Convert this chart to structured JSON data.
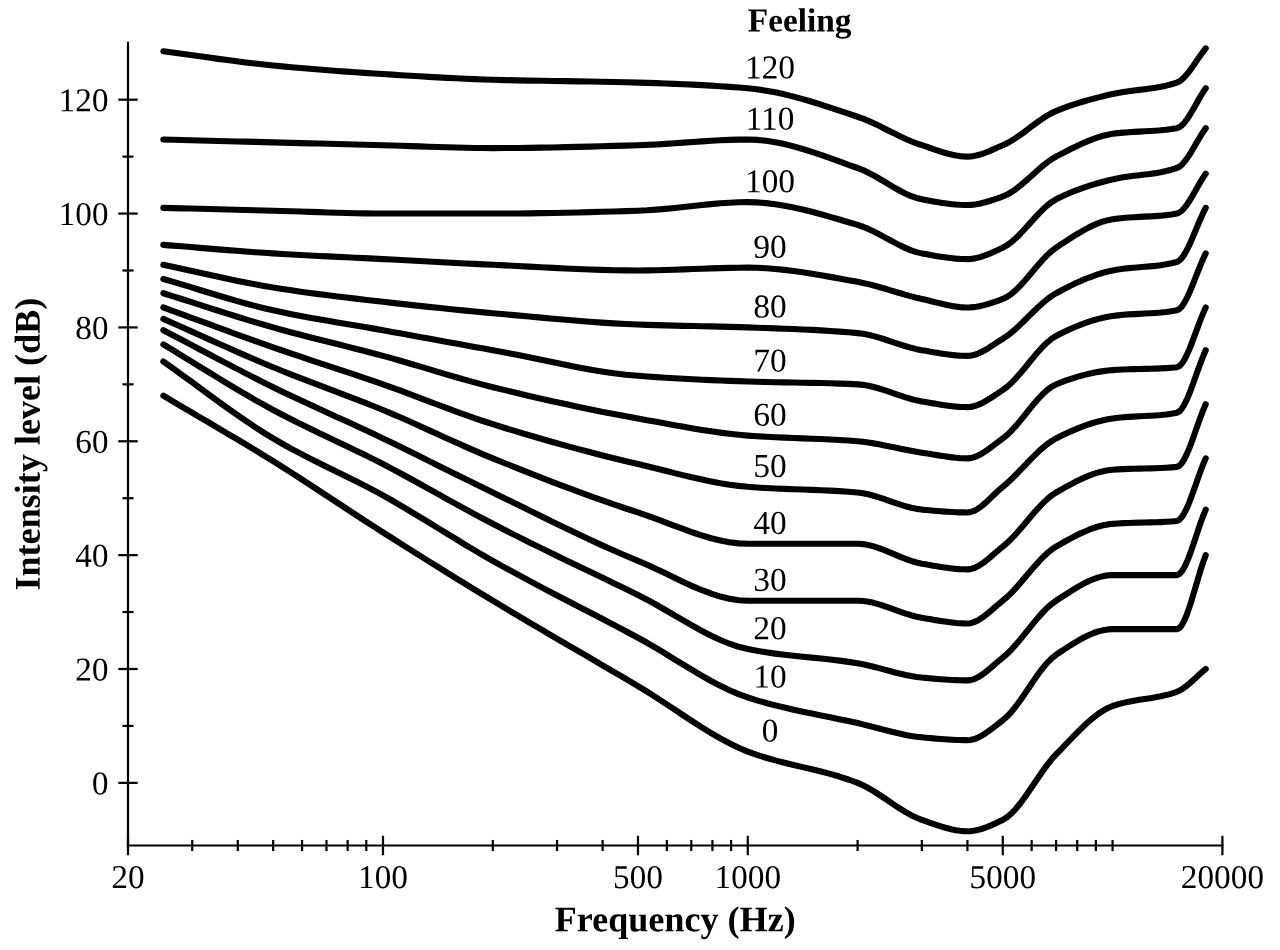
{
  "chart_data": {
    "type": "line",
    "xlabel": "Frequency (Hz)",
    "ylabel": "Intensity level (dB)",
    "log": "x",
    "grid": false,
    "legend": false,
    "marker": "none",
    "line_style": "solid",
    "annotations": [
      "Feeling"
    ],
    "xlim": [
      20,
      20000
    ],
    "ylim": [
      -11,
      130
    ],
    "xticks": [
      20,
      {
        "value": 30,
        "label": null
      },
      {
        "value": 40,
        "label": null
      },
      {
        "value": 50,
        "label": null
      },
      {
        "value": 60,
        "label": null
      },
      {
        "value": 70,
        "label": null
      },
      {
        "value": 80,
        "label": null
      },
      {
        "value": 90,
        "label": null
      },
      100,
      {
        "value": 200,
        "label": null
      },
      {
        "value": 300,
        "label": null
      },
      {
        "value": 400,
        "label": null
      },
      500,
      {
        "value": 600,
        "label": null
      },
      {
        "value": 700,
        "label": null
      },
      {
        "value": 800,
        "label": null
      },
      {
        "value": 900,
        "label": null
      },
      1000,
      {
        "value": 2000,
        "label": null
      },
      {
        "value": 3000,
        "label": null
      },
      {
        "value": 4000,
        "label": null
      },
      5000,
      {
        "value": 6000,
        "label": null
      },
      {
        "value": 7000,
        "label": null
      },
      {
        "value": 8000,
        "label": null
      },
      {
        "value": 9000,
        "label": null
      },
      {
        "value": 10000,
        "label": null
      },
      20000
    ],
    "yticks": [
      0,
      {
        "value": 10,
        "label": null
      },
      20,
      {
        "value": 30,
        "label": null
      },
      40,
      {
        "value": 50,
        "label": null
      },
      60,
      {
        "value": 70,
        "label": null
      },
      80,
      {
        "value": 90,
        "label": null
      },
      100,
      {
        "value": 110,
        "label": null
      },
      120
    ],
    "x": [
      25,
      50,
      100,
      200,
      500,
      1000,
      2000,
      3000,
      4000,
      5000,
      7000,
      10000,
      15000,
      18000
    ],
    "series": [
      {
        "name": "120",
        "color": "#000000",
        "values": [
          128.5,
          126,
          124.5,
          123.5,
          123,
          122,
          117,
          112,
          110,
          112,
          118,
          121,
          123,
          129
        ]
      },
      {
        "name": "110",
        "color": "#000000",
        "values": [
          113,
          112.5,
          112,
          111.5,
          112,
          113,
          108,
          102.5,
          101.5,
          103,
          110,
          114,
          115,
          122
        ]
      },
      {
        "name": "100",
        "color": "#000000",
        "values": [
          101,
          100.5,
          100,
          100,
          100.5,
          102,
          98,
          93,
          92,
          94,
          102.5,
          106,
          108,
          115
        ]
      },
      {
        "name": "90",
        "color": "#000000",
        "values": [
          94.5,
          93,
          92,
          91,
          90,
          90.5,
          88,
          85,
          83.5,
          85,
          94,
          99,
          100,
          107
        ]
      },
      {
        "name": "80",
        "color": "#000000",
        "values": [
          91,
          87,
          84.5,
          82.5,
          80.5,
          80,
          79,
          76,
          75,
          78,
          86,
          90,
          91.5,
          101
        ]
      },
      {
        "name": "70",
        "color": "#000000",
        "values": [
          88.5,
          83,
          79.5,
          76,
          71.5,
          70.5,
          70,
          67,
          66,
          69,
          78.5,
          82,
          83,
          93
        ]
      },
      {
        "name": "60",
        "color": "#000000",
        "values": [
          86,
          80,
          75,
          69.5,
          64,
          61,
          60,
          58,
          57,
          60.5,
          70,
          72.5,
          73,
          83.5
        ]
      },
      {
        "name": "50",
        "color": "#000000",
        "values": [
          83.5,
          76.5,
          70,
          63,
          56,
          52,
          51,
          48,
          47.5,
          52,
          60.5,
          64,
          65,
          76
        ]
      },
      {
        "name": "40",
        "color": "#000000",
        "values": [
          81.5,
          73,
          65.5,
          57,
          47.5,
          42,
          42,
          38.5,
          37.5,
          41.5,
          51,
          55,
          55.5,
          66.5
        ]
      },
      {
        "name": "30",
        "color": "#000000",
        "values": [
          79.5,
          69.5,
          60.5,
          51,
          39,
          32,
          32,
          29,
          28,
          32,
          41.5,
          45.5,
          46,
          57
        ]
      },
      {
        "name": "20",
        "color": "#000000",
        "values": [
          77,
          65.5,
          56,
          45.5,
          33,
          23.5,
          21,
          18.5,
          18,
          22,
          32,
          36.5,
          36.5,
          48
        ]
      },
      {
        "name": "10",
        "color": "#000000",
        "values": [
          74,
          60.5,
          50.5,
          39,
          25.5,
          15,
          10.5,
          8,
          7.5,
          11,
          22.5,
          27,
          27,
          40
        ]
      },
      {
        "name": "0",
        "color": "#000000",
        "values": [
          68,
          56.5,
          44,
          32,
          17,
          5.5,
          0,
          -6.5,
          -8.5,
          -6.5,
          5,
          13.5,
          16,
          20
        ]
      }
    ]
  }
}
